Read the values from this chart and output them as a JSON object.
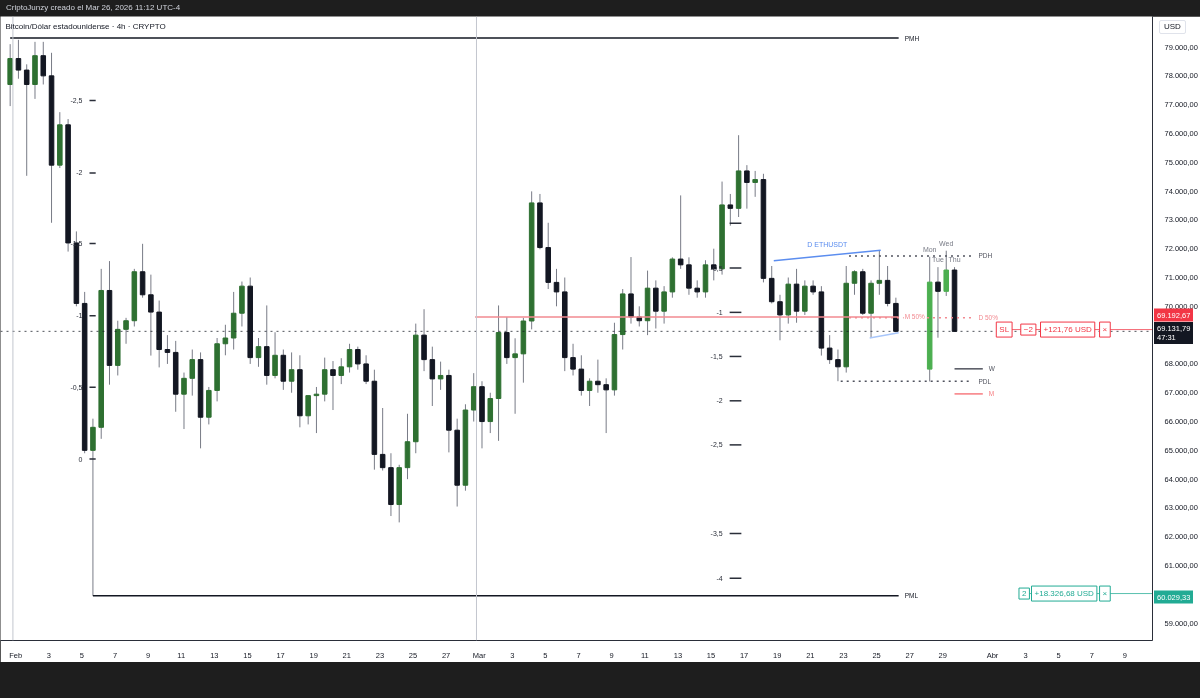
{
  "chart_data": {
    "type": "candlestick",
    "title": "Bitcoin/Dólar estadounidense · 4h · CRYPTO",
    "ylabel": "USD",
    "xlim": [
      "2026-01-31T02:00",
      "2026-04-10T16:00"
    ],
    "xticks": [
      {
        "value": "2026-02-01",
        "label": "Feb"
      },
      {
        "value": "2026-02-03",
        "label": "3"
      },
      {
        "value": "2026-02-05",
        "label": "5"
      },
      {
        "value": "2026-02-07",
        "label": "7"
      },
      {
        "value": "2026-02-09",
        "label": "9"
      },
      {
        "value": "2026-02-11",
        "label": "11"
      },
      {
        "value": "2026-02-13",
        "label": "13"
      },
      {
        "value": "2026-02-15",
        "label": "15"
      },
      {
        "value": "2026-02-17",
        "label": "17"
      },
      {
        "value": "2026-02-19",
        "label": "19"
      },
      {
        "value": "2026-02-21",
        "label": "21"
      },
      {
        "value": "2026-02-23",
        "label": "23"
      },
      {
        "value": "2026-02-25",
        "label": "25"
      },
      {
        "value": "2026-02-27",
        "label": "27"
      },
      {
        "value": "2026-03-01",
        "label": "Mar"
      },
      {
        "value": "2026-03-03",
        "label": "3"
      },
      {
        "value": "2026-03-05",
        "label": "5"
      },
      {
        "value": "2026-03-07",
        "label": "7"
      },
      {
        "value": "2026-03-09",
        "label": "9"
      },
      {
        "value": "2026-03-11",
        "label": "11"
      },
      {
        "value": "2026-03-13",
        "label": "13"
      },
      {
        "value": "2026-03-15",
        "label": "15"
      },
      {
        "value": "2026-03-17",
        "label": "17"
      },
      {
        "value": "2026-03-19",
        "label": "19"
      },
      {
        "value": "2026-03-21",
        "label": "21"
      },
      {
        "value": "2026-03-23",
        "label": "23"
      },
      {
        "value": "2026-03-25",
        "label": "25"
      },
      {
        "value": "2026-03-27",
        "label": "27"
      },
      {
        "value": "2026-03-29",
        "label": "29"
      },
      {
        "value": "2026-04-01",
        "label": "Abr"
      },
      {
        "value": "2026-04-03",
        "label": "3"
      },
      {
        "value": "2026-04-05",
        "label": "5"
      },
      {
        "value": "2026-04-07",
        "label": "7"
      },
      {
        "value": "2026-04-09",
        "label": "9"
      }
    ],
    "ylim": [
      58400,
      80060
    ],
    "yticks": [
      {
        "value": 59000,
        "label": "59.000,00"
      },
      {
        "value": 61000,
        "label": "61.000,00"
      },
      {
        "value": 62000,
        "label": "62.000,00"
      },
      {
        "value": 63000,
        "label": "63.000,00"
      },
      {
        "value": 64000,
        "label": "64.000,00"
      },
      {
        "value": 65000,
        "label": "65.000,00"
      },
      {
        "value": 66000,
        "label": "66.000,00"
      },
      {
        "value": 67000,
        "label": "67.000,00"
      },
      {
        "value": 68000,
        "label": "68.000,00"
      },
      {
        "value": 70000,
        "label": "70.000,00"
      },
      {
        "value": 71000,
        "label": "71.000,00"
      },
      {
        "value": 72000,
        "label": "72.000,00"
      },
      {
        "value": 73000,
        "label": "73.000,00"
      },
      {
        "value": 74000,
        "label": "74.000,00"
      },
      {
        "value": 75000,
        "label": "75.000,00"
      },
      {
        "value": 76000,
        "label": "76.000,00"
      },
      {
        "value": 77000,
        "label": "77.000,00"
      },
      {
        "value": 78000,
        "label": "78.000,00"
      },
      {
        "value": 79000,
        "label": "79.000,00"
      }
    ],
    "grid": false,
    "series": [
      {
        "color": "#787b86",
        "x": [
          "2026-01-31T16:00",
          "2026-02-01T04:00",
          "2026-02-01T16:00",
          "2026-02-02T04:00",
          "2026-02-02T16:00",
          "2026-02-03T04:00",
          "2026-02-03T16:00",
          "2026-02-04T04:00",
          "2026-02-04T16:00",
          "2026-02-05T04:00",
          "2026-02-05T16:00",
          "2026-02-06T04:00",
          "2026-02-06T16:00",
          "2026-02-07T04:00",
          "2026-02-07T16:00",
          "2026-02-08T04:00",
          "2026-02-08T16:00",
          "2026-02-09T04:00",
          "2026-02-09T16:00",
          "2026-02-10T04:00",
          "2026-02-10T16:00",
          "2026-02-11T04:00",
          "2026-02-11T16:00",
          "2026-02-12T04:00",
          "2026-02-12T16:00",
          "2026-02-13T04:00",
          "2026-02-13T16:00",
          "2026-02-14T04:00",
          "2026-02-14T16:00",
          "2026-02-15T04:00",
          "2026-02-15T16:00",
          "2026-02-16T04:00",
          "2026-02-16T16:00",
          "2026-02-17T04:00",
          "2026-02-17T16:00",
          "2026-02-18T04:00",
          "2026-02-18T16:00",
          "2026-02-19T04:00",
          "2026-02-19T16:00",
          "2026-02-20T04:00",
          "2026-02-20T16:00",
          "2026-02-21T04:00",
          "2026-02-21T16:00",
          "2026-02-22T04:00",
          "2026-02-22T16:00",
          "2026-02-23T04:00",
          "2026-02-23T16:00",
          "2026-02-24T04:00",
          "2026-02-24T16:00",
          "2026-02-25T04:00",
          "2026-02-25T16:00",
          "2026-02-26T04:00",
          "2026-02-26T16:00",
          "2026-02-27T04:00",
          "2026-02-27T16:00",
          "2026-02-28T04:00",
          "2026-02-28T16:00",
          "2026-03-01T04:00",
          "2026-03-01T16:00",
          "2026-03-02T04:00",
          "2026-03-02T16:00",
          "2026-03-03T04:00",
          "2026-03-03T16:00",
          "2026-03-04T04:00",
          "2026-03-04T16:00",
          "2026-03-05T04:00",
          "2026-03-05T16:00",
          "2026-03-06T04:00",
          "2026-03-06T16:00",
          "2026-03-07T04:00",
          "2026-03-07T16:00",
          "2026-03-08T04:00",
          "2026-03-08T16:00",
          "2026-03-09T04:00",
          "2026-03-09T16:00",
          "2026-03-10T04:00",
          "2026-03-10T16:00",
          "2026-03-11T04:00",
          "2026-03-11T16:00",
          "2026-03-12T04:00",
          "2026-03-12T16:00",
          "2026-03-13T04:00",
          "2026-03-13T16:00",
          "2026-03-14T04:00",
          "2026-03-14T16:00",
          "2026-03-15T04:00",
          "2026-03-15T16:00",
          "2026-03-16T04:00",
          "2026-03-16T16:00",
          "2026-03-17T04:00",
          "2026-03-17T16:00",
          "2026-03-18T04:00",
          "2026-03-18T16:00",
          "2026-03-19T04:00",
          "2026-03-19T16:00",
          "2026-03-20T04:00",
          "2026-03-20T16:00",
          "2026-03-21T04:00",
          "2026-03-21T16:00",
          "2026-03-22T04:00",
          "2026-03-22T16:00",
          "2026-03-23T04:00",
          "2026-03-23T16:00",
          "2026-03-24T04:00",
          "2026-03-24T16:00",
          "2026-03-25T04:00",
          "2026-03-25T16:00",
          "2026-03-26T04:00"
        ],
        "ohlc": [
          [
            77700,
            79100,
            76950,
            78600
          ],
          [
            78600,
            79250,
            77900,
            78200
          ],
          [
            78200,
            78400,
            74530,
            77700
          ],
          [
            77700,
            79180,
            77200,
            78700
          ],
          [
            78700,
            79180,
            77700,
            78000
          ],
          [
            78000,
            78800,
            72900,
            74900
          ],
          [
            74900,
            76740,
            74800,
            76300
          ],
          [
            76300,
            76500,
            71900,
            72200
          ],
          [
            72200,
            72600,
            70000,
            70100
          ],
          [
            70100,
            70500,
            64900,
            65000
          ],
          [
            65000,
            66100,
            59950,
            65800
          ],
          [
            65800,
            71300,
            65400,
            70550
          ],
          [
            70550,
            71570,
            67280,
            67950
          ],
          [
            67950,
            69500,
            67600,
            69200
          ],
          [
            69200,
            69600,
            68700,
            69500
          ],
          [
            69500,
            71300,
            69300,
            71200
          ],
          [
            71200,
            72170,
            70300,
            70400
          ],
          [
            70400,
            71100,
            68290,
            69800
          ],
          [
            69800,
            70200,
            67880,
            68500
          ],
          [
            68500,
            69000,
            68000,
            68400
          ],
          [
            68400,
            68800,
            66340,
            66950
          ],
          [
            66950,
            67700,
            65740,
            67500
          ],
          [
            67500,
            68500,
            66900,
            68150
          ],
          [
            68150,
            68400,
            65070,
            66150
          ],
          [
            66150,
            67200,
            65900,
            67080
          ],
          [
            67080,
            68900,
            66700,
            68700
          ],
          [
            68700,
            69360,
            68300,
            68900
          ],
          [
            68900,
            70500,
            68500,
            69760
          ],
          [
            69760,
            70860,
            69300,
            70700
          ],
          [
            70700,
            71000,
            68000,
            68220
          ],
          [
            68220,
            68900,
            67900,
            68600
          ],
          [
            68600,
            70030,
            67280,
            67600
          ],
          [
            67600,
            69100,
            67500,
            68300
          ],
          [
            68300,
            68500,
            67100,
            67400
          ],
          [
            67400,
            68400,
            67000,
            67800
          ],
          [
            67800,
            68300,
            65800,
            66200
          ],
          [
            66200,
            66900,
            65900,
            66900
          ],
          [
            66900,
            67200,
            65600,
            66950
          ],
          [
            66950,
            68220,
            66700,
            67800
          ],
          [
            67800,
            68100,
            66400,
            67600
          ],
          [
            67600,
            68200,
            67300,
            67900
          ],
          [
            67900,
            68700,
            67700,
            68500
          ],
          [
            68500,
            68600,
            67800,
            68000
          ],
          [
            68000,
            68300,
            67300,
            67400
          ],
          [
            67400,
            67800,
            64330,
            64860
          ],
          [
            64860,
            66470,
            64300,
            64400
          ],
          [
            64400,
            64900,
            62720,
            63120
          ],
          [
            63120,
            64500,
            62500,
            64400
          ],
          [
            64400,
            66270,
            64000,
            65300
          ],
          [
            65300,
            69400,
            64900,
            69000
          ],
          [
            69000,
            69900,
            67750,
            68150
          ],
          [
            68150,
            68600,
            66540,
            67480
          ],
          [
            67480,
            68080,
            67100,
            67600
          ],
          [
            67600,
            67800,
            64930,
            65700
          ],
          [
            65700,
            66100,
            63050,
            63790
          ],
          [
            63790,
            66600,
            63600,
            66400
          ],
          [
            66400,
            67680,
            66000,
            67210
          ],
          [
            67210,
            67400,
            65070,
            66000
          ],
          [
            66000,
            67000,
            65600,
            66800
          ],
          [
            66800,
            70030,
            65330,
            69090
          ],
          [
            69090,
            69630,
            68000,
            68220
          ],
          [
            68220,
            68890,
            66270,
            68350
          ],
          [
            68350,
            69600,
            67350,
            69490
          ],
          [
            69490,
            73990,
            69200,
            73590
          ],
          [
            73590,
            73900,
            71980,
            72040
          ],
          [
            72040,
            72900,
            70600,
            70830
          ],
          [
            70830,
            71300,
            70000,
            70500
          ],
          [
            70500,
            71000,
            67750,
            68220
          ],
          [
            68220,
            68700,
            67600,
            67820
          ],
          [
            67820,
            68300,
            66900,
            67080
          ],
          [
            67080,
            67500,
            66540,
            67400
          ],
          [
            67400,
            68150,
            67000,
            67280
          ],
          [
            67280,
            67500,
            65600,
            67100
          ],
          [
            67100,
            69430,
            66900,
            69020
          ],
          [
            69020,
            70600,
            68500,
            70430
          ],
          [
            70430,
            71710,
            69400,
            69630
          ],
          [
            69630,
            70000,
            69300,
            69500
          ],
          [
            69500,
            71240,
            69000,
            70630
          ],
          [
            70630,
            70900,
            69230,
            69830
          ],
          [
            69830,
            70700,
            69400,
            70500
          ],
          [
            70500,
            71700,
            70300,
            71640
          ],
          [
            71640,
            73850,
            71300,
            71440
          ],
          [
            71440,
            71700,
            70400,
            70630
          ],
          [
            70630,
            70900,
            70300,
            70500
          ],
          [
            70500,
            71600,
            70300,
            71440
          ],
          [
            71440,
            72000,
            70900,
            71300
          ],
          [
            71300,
            74330,
            71100,
            73520
          ],
          [
            73520,
            73900,
            72800,
            73400
          ],
          [
            73400,
            75940,
            73100,
            74700
          ],
          [
            74700,
            74900,
            73390,
            74300
          ],
          [
            74300,
            74700,
            73800,
            74400
          ],
          [
            74400,
            74600,
            70830,
            70970
          ],
          [
            70970,
            71400,
            70100,
            70160
          ],
          [
            70160,
            70400,
            68820,
            69700
          ],
          [
            69700,
            71000,
            69400,
            70770
          ],
          [
            70770,
            71300,
            69430,
            69830
          ],
          [
            69830,
            70900,
            69700,
            70700
          ],
          [
            70700,
            70900,
            70400,
            70500
          ],
          [
            70500,
            70700,
            68290,
            68550
          ],
          [
            68550,
            69000,
            68000,
            68150
          ],
          [
            68150,
            68500,
            67400,
            67900
          ],
          [
            67900,
            71400,
            67700,
            70800
          ],
          [
            70800,
            71250,
            70400,
            71200
          ],
          [
            71200,
            71300,
            69700,
            69760
          ],
          [
            69760,
            70900,
            68910,
            70800
          ],
          [
            70800,
            71930,
            70400,
            70900
          ],
          [
            70900,
            71400,
            70000,
            70100
          ],
          [
            70100,
            70300,
            69100,
            69132
          ]
        ],
        "colors": [
          "#2e7031",
          "#131722",
          "#131722",
          "#2e7031",
          "#131722",
          "#131722",
          "#2e7031",
          "#131722",
          "#131722",
          "#131722",
          "#2e7031",
          "#2e7031",
          "#131722",
          "#2e7031",
          "#2e7031",
          "#2e7031",
          "#131722",
          "#131722",
          "#131722",
          "#131722",
          "#131722",
          "#2e7031",
          "#2e7031",
          "#131722",
          "#2e7031",
          "#2e7031",
          "#2e7031",
          "#2e7031",
          "#2e7031",
          "#131722",
          "#2e7031",
          "#131722",
          "#2e7031",
          "#131722",
          "#2e7031",
          "#131722",
          "#2e7031",
          "#2e7031",
          "#2e7031",
          "#131722",
          "#2e7031",
          "#2e7031",
          "#131722",
          "#131722",
          "#131722",
          "#131722",
          "#131722",
          "#2e7031",
          "#2e7031",
          "#2e7031",
          "#131722",
          "#131722",
          "#2e7031",
          "#131722",
          "#131722",
          "#2e7031",
          "#2e7031",
          "#131722",
          "#2e7031",
          "#2e7031",
          "#131722",
          "#2e7031",
          "#2e7031",
          "#2e7031",
          "#131722",
          "#131722",
          "#131722",
          "#131722",
          "#131722",
          "#131722",
          "#2e7031",
          "#131722",
          "#131722",
          "#2e7031",
          "#2e7031",
          "#131722",
          "#131722",
          "#2e7031",
          "#131722",
          "#2e7031",
          "#2e7031",
          "#131722",
          "#131722",
          "#131722",
          "#2e7031",
          "#131722",
          "#2e7031",
          "#131722",
          "#2e7031",
          "#131722",
          "#2e7031",
          "#131722",
          "#131722",
          "#131722",
          "#2e7031",
          "#131722",
          "#2e7031",
          "#131722",
          "#131722",
          "#131722",
          "#131722",
          "#2e7031",
          "#2e7031",
          "#131722",
          "#2e7031",
          "#2e7031",
          "#131722",
          "#131722"
        ]
      },
      {
        "type": "candlestick",
        "color": "#787b86",
        "x": [
          "2026-03-28T05:00",
          "2026-03-28T17:00",
          "2026-03-29T05:00",
          "2026-03-29T17:00"
        ],
        "ohlc": [
          [
            67820,
            71720,
            67390,
            70840
          ],
          [
            70840,
            71360,
            68910,
            70520
          ],
          [
            70520,
            71930,
            70360,
            71260
          ],
          [
            71260,
            71360,
            69130,
            69130
          ]
        ],
        "colors": [
          "#4caf50",
          "#131722",
          "#4caf50",
          "#131722"
        ]
      },
      {
        "type": "line",
        "name": "PMH",
        "color": "#131722",
        "x": [
          "2026-01-31T16:00",
          "2026-03-26T08:00"
        ],
        "values": [
          79310,
          79310
        ]
      },
      {
        "type": "line",
        "name": "PML",
        "color": "#131722",
        "x": [
          "2026-02-05T16:00",
          "2026-03-26T08:00"
        ],
        "values": [
          59950,
          59950
        ]
      },
      {
        "type": "line",
        "name": "M 50%",
        "color": "#f28a91",
        "x": [
          "2026-02-28T18:00",
          "2026-03-26T08:00"
        ],
        "values": [
          69630,
          69630
        ]
      },
      {
        "type": "line",
        "name": "D 50%",
        "color": "#f28a91",
        "line_style": "dotted",
        "x": [
          "2026-03-23T08:00",
          "2026-03-30T19:00"
        ],
        "values": [
          69600,
          69600
        ]
      },
      {
        "type": "line",
        "name": "PDH",
        "color": "#50535e",
        "line_style": "dotted",
        "x": [
          "2026-03-23T08:00",
          "2026-03-30T19:00"
        ],
        "values": [
          71750,
          71750
        ]
      },
      {
        "type": "line",
        "name": "PDL",
        "color": "#50535e",
        "line_style": "dotted",
        "x": [
          "2026-03-22T20:00",
          "2026-03-30T19:00"
        ],
        "values": [
          67400,
          67400
        ]
      },
      {
        "type": "line",
        "name": "W",
        "color": "#50535e",
        "x": [
          "2026-03-29T17:00",
          "2026-03-31T10:00"
        ],
        "values": [
          67830,
          67830
        ]
      },
      {
        "type": "line",
        "name": "M",
        "color": "#f77c80",
        "x": [
          "2026-03-29T17:00",
          "2026-03-31T10:00"
        ],
        "values": [
          66960,
          66960
        ]
      },
      {
        "type": "line",
        "name": "D ETHUSDT",
        "color": "#5b8def",
        "x": [
          "2026-03-18T19:00",
          "2026-03-25T06:00"
        ],
        "values": [
          71580,
          71950
        ]
      },
      {
        "type": "line",
        "color": "#a8c6fa",
        "x": [
          "2026-03-24T14:00",
          "2026-03-26T08:00"
        ],
        "values": [
          68900,
          69080
        ]
      },
      {
        "type": "line",
        "name": "-2,5",
        "color": "#2a2e39",
        "x": [
          "2026-02-05T20:00",
          "2026-02-05T11:00"
        ],
        "values": [
          77140,
          77140
        ]
      },
      {
        "type": "line",
        "name": "-2",
        "color": "#2a2e39",
        "x": [
          "2026-02-05T20:00",
          "2026-02-05T11:00"
        ],
        "values": [
          74630,
          74630
        ]
      },
      {
        "type": "line",
        "name": "-1,5",
        "color": "#2a2e39",
        "x": [
          "2026-02-05T20:00",
          "2026-02-05T11:00"
        ],
        "values": [
          72180,
          72180
        ]
      },
      {
        "type": "line",
        "name": "-1",
        "color": "#2a2e39",
        "x": [
          "2026-02-05T20:00",
          "2026-02-05T11:00"
        ],
        "values": [
          69670,
          69670
        ]
      },
      {
        "type": "line",
        "name": "-0,5",
        "color": "#2a2e39",
        "x": [
          "2026-02-05T20:00",
          "2026-02-05T11:00"
        ],
        "values": [
          67190,
          67190
        ]
      },
      {
        "type": "line",
        "name": "0",
        "color": "#2a2e39",
        "x": [
          "2026-02-05T20:00",
          "2026-02-05T11:00"
        ],
        "values": [
          64700,
          64700
        ]
      },
      {
        "type": "line",
        "color": "#2a2e39",
        "x": [
          "2026-03-16T03:00",
          "2026-03-16T20:00"
        ],
        "values": [
          72880,
          72880
        ]
      },
      {
        "type": "line",
        "name": "-0,5",
        "color": "#2a2e39",
        "x": [
          "2026-03-16T20:00",
          "2026-03-16T03:00"
        ],
        "values": [
          71330,
          71330
        ]
      },
      {
        "type": "line",
        "name": "-1",
        "color": "#2a2e39",
        "x": [
          "2026-03-16T20:00",
          "2026-03-16T03:00"
        ],
        "values": [
          69790,
          69790
        ]
      },
      {
        "type": "line",
        "name": "-1,5",
        "color": "#2a2e39",
        "x": [
          "2026-03-16T20:00",
          "2026-03-16T03:00"
        ],
        "values": [
          68260,
          68260
        ]
      },
      {
        "type": "line",
        "name": "-2",
        "color": "#2a2e39",
        "x": [
          "2026-03-16T20:00",
          "2026-03-16T03:00"
        ],
        "values": [
          66720,
          66720
        ]
      },
      {
        "type": "line",
        "name": "-2,5",
        "color": "#2a2e39",
        "x": [
          "2026-03-16T20:00",
          "2026-03-16T03:00"
        ],
        "values": [
          65190,
          65190
        ]
      },
      {
        "type": "line",
        "name": "-3,5",
        "color": "#2a2e39",
        "x": [
          "2026-03-16T20:00",
          "2026-03-16T03:00"
        ],
        "values": [
          62110,
          62110
        ]
      },
      {
        "type": "line",
        "name": "-4",
        "color": "#2a2e39",
        "x": [
          "2026-03-16T20:00",
          "2026-03-16T03:00"
        ],
        "values": [
          60560,
          60560
        ]
      }
    ],
    "ref_lines": [
      {
        "axis": "x",
        "value": "2026-01-31T20:00",
        "color": "#c3c6ce"
      },
      {
        "axis": "x",
        "value": "2026-02-28T20:00",
        "color": "#c3c6ce"
      },
      {
        "axis": "y",
        "value": 69131.79,
        "label": "69.131,79\n47:31",
        "color": "#131722",
        "line_style": "dotted"
      },
      {
        "axis": "y",
        "value": 69192.67,
        "label": "69.192,67",
        "color": "#f23645"
      },
      {
        "axis": "y",
        "value": 60029.33,
        "label": "60.029,33",
        "color": "#22ab94"
      }
    ],
    "annotations": [
      "CriptoJunzy creado el Mar 26, 2026 11:12 UTC-4",
      {
        "text": "Mon",
        "x": "2026-03-28T05:00",
        "y": 71720
      },
      {
        "text": "Tue",
        "x": "2026-03-28T17:00",
        "y": 71360
      },
      {
        "text": "Wed",
        "x": "2026-03-29T05:00",
        "y": 71930
      },
      {
        "text": "Thu",
        "x": "2026-03-29T17:00",
        "y": 71360
      },
      {
        "text": "SL",
        "x": "2026-04-01T17:00",
        "y": 69192.67
      },
      {
        "text": "−2",
        "x": "2026-04-03T04:00",
        "y": 69192.67
      },
      {
        "text": "+121,76 USD",
        "x": "2026-04-05T13:00",
        "y": 69192.67
      },
      {
        "text": "×",
        "x": "2026-04-07T19:00",
        "y": 69192.67
      },
      {
        "text": "2",
        "x": "2026-04-02T22:00",
        "y": 60029.33
      },
      {
        "text": "+18.326,68 USD",
        "x": "2026-04-05T08:00",
        "y": 60029.33
      },
      {
        "text": "×",
        "x": "2026-04-07T19:00",
        "y": 60029.33
      }
    ]
  }
}
